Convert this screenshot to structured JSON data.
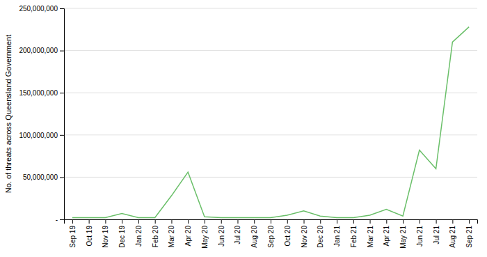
{
  "chart_data": {
    "type": "line",
    "categories": [
      "Sep 19",
      "Oct 19",
      "Nov 19",
      "Dec 19",
      "Jan 20",
      "Feb 20",
      "Mar 20",
      "Apr 20",
      "May 20",
      "Jun 20",
      "Jul 20",
      "Aug 20",
      "Sep 20",
      "Oct 20",
      "Nov 20",
      "Dec 20",
      "Jan 21",
      "Feb 21",
      "Mar 21",
      "Apr 21",
      "May 21",
      "Jun 21",
      "Jul 21",
      "Aug 21",
      "Sep 21"
    ],
    "values": [
      2000000,
      2000000,
      2000000,
      7000000,
      2000000,
      2000000,
      28000000,
      56000000,
      3000000,
      2000000,
      2000000,
      2000000,
      2000000,
      5000000,
      10000000,
      4000000,
      2000000,
      2000000,
      5000000,
      12000000,
      4000000,
      82000000,
      60000000,
      210000000,
      228000000
    ],
    "color": "#6abf69",
    "ylabel": "No. of threats across Queensland Government",
    "ylim": [
      0,
      250000000
    ],
    "yticks": [
      {
        "value": 0,
        "label": " -"
      },
      {
        "value": 50000000,
        "label": "50,000,000"
      },
      {
        "value": 100000000,
        "label": "100,000,000"
      },
      {
        "value": 150000000,
        "label": "150,000,000"
      },
      {
        "value": 200000000,
        "label": "200,000,000"
      },
      {
        "value": 250000000,
        "label": "250,000,000"
      }
    ],
    "grid": true
  }
}
